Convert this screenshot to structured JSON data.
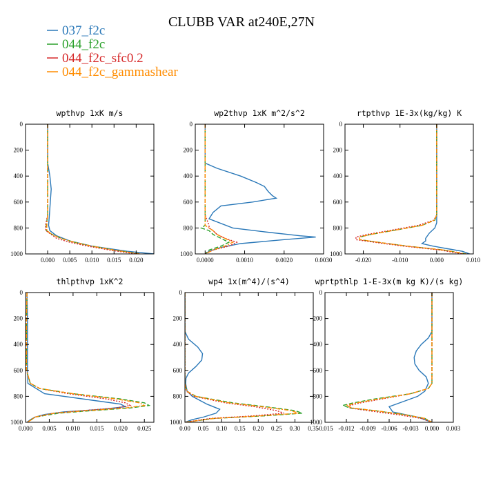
{
  "figure": {
    "title": "CLUBB VAR at240E,27N"
  },
  "legend": [
    {
      "label": "037_f2c",
      "color": "#2a78b8",
      "dash": ""
    },
    {
      "label": "044_f2c",
      "color": "#2aa02a",
      "dash": "6,3"
    },
    {
      "label": "044_f2c_sfc0.2",
      "color": "#d62728",
      "dash": "2,2"
    },
    {
      "label": "044_f2c_gammashear",
      "color": "#ff8c00",
      "dash": "6,2,2,2"
    }
  ],
  "chart_data": [
    {
      "type": "line",
      "title": "wpthvp  1xK m/s",
      "xlim": [
        -0.005,
        0.024
      ],
      "ylim": [
        1000,
        0
      ],
      "xticks": [
        0.0,
        0.005,
        0.01,
        0.015,
        0.02
      ],
      "xtick_labels": [
        "0.000",
        "0.005",
        "0.010",
        "0.015",
        "0.020"
      ],
      "yticks": [
        0,
        200,
        400,
        600,
        800,
        1000
      ],
      "ytick_labels": [
        "0",
        "200",
        "400",
        "600",
        "800",
        "1000"
      ],
      "series": [
        {
          "y": [
            0,
            100,
            200,
            300,
            400,
            500,
            600,
            700,
            780,
            820,
            860,
            900,
            940,
            980,
            1000
          ],
          "x": [
            0,
            0,
            0,
            0,
            0.0005,
            0.0008,
            0.0006,
            0.0004,
            0.0002,
            0.0005,
            0.002,
            0.005,
            0.01,
            0.018,
            0.024
          ]
        },
        {
          "y": [
            0,
            200,
            400,
            600,
            700,
            780,
            820,
            850,
            880,
            910,
            940,
            970,
            1000
          ],
          "x": [
            0,
            0,
            0,
            0,
            0,
            -0.0003,
            -0.0003,
            0.001,
            0.003,
            0.006,
            0.01,
            0.015,
            0.021
          ]
        },
        {
          "y": [
            0,
            200,
            400,
            600,
            700,
            780,
            820,
            850,
            880,
            910,
            940,
            970,
            1000
          ],
          "x": [
            0,
            0,
            0,
            0,
            0,
            -0.0005,
            -0.0004,
            0.0008,
            0.002,
            0.005,
            0.009,
            0.014,
            0.02
          ]
        },
        {
          "y": [
            0,
            200,
            400,
            600,
            700,
            780,
            820,
            850,
            880,
            910,
            940,
            970,
            1000
          ],
          "x": [
            0,
            0,
            0,
            0,
            0,
            -0.0002,
            -0.0002,
            0.001,
            0.003,
            0.006,
            0.01,
            0.015,
            0.021
          ]
        }
      ]
    },
    {
      "type": "line",
      "title": "wp2thvp  1xK m^2/s^2",
      "xlim": [
        -0.00025,
        0.003
      ],
      "ylim": [
        1000,
        0
      ],
      "xticks": [
        0.0,
        0.001,
        0.002,
        0.003
      ],
      "xtick_labels": [
        "0.0000",
        "0.0010",
        "0.0020",
        "0.0030"
      ],
      "yticks": [
        0,
        200,
        400,
        600,
        800,
        1000
      ],
      "ytick_labels": [
        "0",
        "200",
        "400",
        "600",
        "800",
        "1000"
      ],
      "series": [
        {
          "y": [
            0,
            300,
            340,
            400,
            450,
            480,
            520,
            550,
            570,
            600,
            630,
            680,
            730,
            800,
            830,
            860,
            870,
            890,
            920,
            950,
            980,
            1000
          ],
          "x": [
            0,
            0,
            0.0003,
            0.0009,
            0.0013,
            0.0015,
            0.0016,
            0.0017,
            0.0018,
            0.0012,
            0.0004,
            0.0002,
            0.0001,
            0.0007,
            0.0015,
            0.0024,
            0.0028,
            0.002,
            0.0009,
            0.0004,
            0.0001,
            0
          ]
        },
        {
          "y": [
            0,
            200,
            400,
            600,
            700,
            780,
            800,
            820,
            850,
            880,
            910,
            940,
            970,
            1000
          ],
          "x": [
            0,
            0,
            0,
            0,
            0,
            0,
            -0.0001,
            0.0001,
            0.0002,
            0.0004,
            0.0006,
            0.0004,
            0.0001,
            0
          ]
        },
        {
          "y": [
            0,
            200,
            400,
            600,
            700,
            780,
            800,
            820,
            850,
            880,
            910,
            940,
            970,
            1000
          ],
          "x": [
            0,
            0,
            0,
            0,
            0,
            0.0001,
            0.0001,
            0.0002,
            0.0003,
            0.0005,
            0.0008,
            0.0006,
            0.0002,
            0
          ]
        },
        {
          "y": [
            0,
            200,
            400,
            600,
            700,
            780,
            800,
            820,
            850,
            880,
            910,
            940,
            970,
            1000
          ],
          "x": [
            0,
            0,
            0,
            0,
            0,
            0,
            0.0001,
            0.0002,
            0.0003,
            0.0005,
            0.0007,
            0.0005,
            0.0002,
            0
          ]
        }
      ]
    },
    {
      "type": "line",
      "title": "rtpthvp  1E-3x(kg/kg) K",
      "xlim": [
        -0.025,
        0.01
      ],
      "ylim": [
        1000,
        0
      ],
      "xticks": [
        -0.02,
        -0.01,
        0.0,
        0.01
      ],
      "xtick_labels": [
        "-0.020",
        "-0.010",
        "0.000",
        "0.010"
      ],
      "yticks": [
        0,
        200,
        400,
        600,
        800,
        1000
      ],
      "ytick_labels": [
        "0",
        "200",
        "400",
        "600",
        "800",
        "1000"
      ],
      "series": [
        {
          "y": [
            0,
            200,
            400,
            600,
            700,
            760,
            800,
            840,
            880,
            900,
            920,
            940,
            960,
            980,
            1000
          ],
          "x": [
            0,
            0,
            0,
            0,
            0,
            0,
            -0.0005,
            -0.002,
            -0.003,
            -0.003,
            -0.004,
            -0.001,
            0.003,
            0.007,
            0.009
          ]
        },
        {
          "y": [
            0,
            200,
            400,
            600,
            700,
            740,
            780,
            820,
            850,
            870,
            890,
            910,
            940,
            970,
            1000
          ],
          "x": [
            0,
            0,
            0,
            0,
            0,
            -0.0005,
            -0.004,
            -0.012,
            -0.018,
            -0.021,
            -0.021,
            -0.016,
            -0.008,
            0.002,
            0.008
          ]
        },
        {
          "y": [
            0,
            200,
            400,
            600,
            700,
            740,
            780,
            820,
            850,
            870,
            890,
            910,
            940,
            970,
            1000
          ],
          "x": [
            0,
            0,
            0,
            0,
            0,
            -0.0008,
            -0.005,
            -0.013,
            -0.019,
            -0.022,
            -0.022,
            -0.017,
            -0.009,
            0.001,
            0.007
          ]
        },
        {
          "y": [
            0,
            200,
            400,
            600,
            700,
            740,
            780,
            820,
            850,
            870,
            890,
            910,
            940,
            970,
            1000
          ],
          "x": [
            0,
            0,
            0,
            0,
            0,
            -0.0006,
            -0.004,
            -0.012,
            -0.018,
            -0.021,
            -0.021,
            -0.016,
            -0.008,
            0.002,
            0.008
          ]
        }
      ]
    },
    {
      "type": "line",
      "title": "thlpthvp  1xK^2",
      "xlim": [
        0.0,
        0.027
      ],
      "ylim": [
        1000,
        0
      ],
      "xticks": [
        0.0,
        0.005,
        0.01,
        0.015,
        0.02,
        0.025
      ],
      "xtick_labels": [
        "0.000",
        "0.005",
        "0.010",
        "0.015",
        "0.020",
        "0.025"
      ],
      "yticks": [
        0,
        200,
        400,
        600,
        800,
        1000
      ],
      "ytick_labels": [
        "0",
        "200",
        "400",
        "600",
        "800",
        "1000"
      ],
      "series": [
        {
          "y": [
            0,
            200,
            400,
            600,
            700,
            780,
            830,
            860,
            880,
            900,
            920,
            940,
            960,
            980,
            1000
          ],
          "x": [
            0.0003,
            0.0004,
            0.0004,
            0.0004,
            0.0005,
            0.004,
            0.014,
            0.02,
            0.021,
            0.016,
            0.008,
            0.004,
            0.002,
            0.001,
            0.0003
          ]
        },
        {
          "y": [
            0,
            200,
            400,
            600,
            700,
            740,
            780,
            820,
            850,
            870,
            890,
            910,
            930,
            960,
            1000
          ],
          "x": [
            0.0003,
            0.0002,
            0.0002,
            0.0002,
            0.001,
            0.003,
            0.01,
            0.02,
            0.025,
            0.026,
            0.022,
            0.014,
            0.007,
            0.002,
            0.0004
          ]
        },
        {
          "y": [
            0,
            200,
            400,
            600,
            700,
            740,
            780,
            820,
            850,
            870,
            890,
            910,
            930,
            960,
            1000
          ],
          "x": [
            0.0003,
            0.0002,
            0.0002,
            0.0002,
            0.001,
            0.003,
            0.009,
            0.017,
            0.021,
            0.022,
            0.019,
            0.012,
            0.006,
            0.002,
            0.0004
          ]
        },
        {
          "y": [
            0,
            200,
            400,
            600,
            700,
            740,
            780,
            820,
            850,
            870,
            890,
            910,
            930,
            960,
            1000
          ],
          "x": [
            0.0003,
            0.0002,
            0.0002,
            0.0002,
            0.001,
            0.003,
            0.01,
            0.019,
            0.024,
            0.025,
            0.021,
            0.013,
            0.006,
            0.002,
            0.0004
          ]
        }
      ]
    },
    {
      "type": "line",
      "title": "wp4  1x(m^4)/(s^4)",
      "xlim": [
        0.0,
        0.35
      ],
      "ylim": [
        1000,
        0
      ],
      "xticks": [
        0.0,
        0.05,
        0.1,
        0.15,
        0.2,
        0.25,
        0.3,
        0.35
      ],
      "xtick_labels": [
        "0.00",
        "0.05",
        "0.10",
        "0.15",
        "0.20",
        "0.25",
        "0.30",
        "0.35"
      ],
      "yticks": [
        0,
        200,
        400,
        600,
        800,
        1000
      ],
      "ytick_labels": [
        "0",
        "200",
        "400",
        "600",
        "800",
        "1000"
      ],
      "series": [
        {
          "y": [
            0,
            300,
            360,
            420,
            470,
            520,
            570,
            620,
            660,
            700,
            760,
            800,
            860,
            900,
            930,
            960,
            980,
            1000
          ],
          "x": [
            0,
            0,
            0.01,
            0.035,
            0.048,
            0.046,
            0.03,
            0.01,
            0.003,
            0.002,
            0.006,
            0.02,
            0.06,
            0.095,
            0.085,
            0.05,
            0.02,
            0
          ]
        },
        {
          "y": [
            0,
            200,
            400,
            600,
            700,
            760,
            800,
            850,
            880,
            910,
            930,
            950,
            970,
            1000
          ],
          "x": [
            0,
            0,
            0,
            0,
            0,
            0.005,
            0.03,
            0.13,
            0.22,
            0.3,
            0.32,
            0.22,
            0.08,
            0
          ]
        },
        {
          "y": [
            0,
            200,
            400,
            600,
            700,
            760,
            800,
            850,
            880,
            910,
            930,
            950,
            970,
            1000
          ],
          "x": [
            0,
            0,
            0,
            0,
            0,
            0.004,
            0.025,
            0.11,
            0.19,
            0.25,
            0.27,
            0.19,
            0.07,
            0
          ]
        },
        {
          "y": [
            0,
            200,
            400,
            600,
            700,
            760,
            800,
            850,
            880,
            910,
            930,
            950,
            970,
            1000
          ],
          "x": [
            0,
            0,
            0,
            0,
            0,
            0.005,
            0.03,
            0.12,
            0.21,
            0.29,
            0.31,
            0.21,
            0.08,
            0
          ]
        }
      ]
    },
    {
      "type": "line",
      "title": "wprtpthlp  1-E-3x(m kg K)/(s kg)",
      "xlim": [
        -0.015,
        0.003
      ],
      "ylim": [
        1000,
        0
      ],
      "xticks": [
        -0.015,
        -0.012,
        -0.009,
        -0.006,
        -0.003,
        0.0,
        0.003
      ],
      "xtick_labels": [
        "-0.015",
        "-0.012",
        "-0.009",
        "-0.006",
        "-0.003",
        "0.000",
        "0.003"
      ],
      "yticks": [
        0,
        200,
        400,
        600,
        800,
        1000
      ],
      "ytick_labels": [
        "0",
        "200",
        "400",
        "600",
        "800",
        "1000"
      ],
      "series": [
        {
          "y": [
            0,
            300,
            350,
            400,
            450,
            500,
            550,
            600,
            650,
            700,
            760,
            800,
            840,
            880,
            920,
            960,
            1000
          ],
          "x": [
            0,
            0,
            -0.0005,
            -0.0015,
            -0.0022,
            -0.0025,
            -0.0024,
            -0.0018,
            -0.0008,
            -0.0005,
            -0.001,
            -0.002,
            -0.004,
            -0.006,
            -0.0055,
            -0.002,
            0
          ]
        },
        {
          "y": [
            0,
            200,
            400,
            600,
            700,
            740,
            780,
            820,
            850,
            870,
            890,
            910,
            940,
            970,
            1000
          ],
          "x": [
            0,
            0,
            0,
            0,
            0,
            -0.0005,
            -0.003,
            -0.008,
            -0.011,
            -0.0125,
            -0.0115,
            -0.008,
            -0.004,
            -0.001,
            0
          ]
        },
        {
          "y": [
            0,
            200,
            400,
            600,
            700,
            740,
            780,
            820,
            850,
            870,
            890,
            910,
            940,
            970,
            1000
          ],
          "x": [
            0,
            0,
            0,
            0,
            0,
            -0.0005,
            -0.003,
            -0.007,
            -0.01,
            -0.0115,
            -0.0115,
            -0.009,
            -0.005,
            -0.0015,
            0
          ]
        },
        {
          "y": [
            0,
            200,
            400,
            600,
            700,
            740,
            780,
            820,
            850,
            870,
            890,
            910,
            940,
            970,
            1000
          ],
          "x": [
            0,
            0,
            0,
            0,
            0,
            -0.0005,
            -0.003,
            -0.0075,
            -0.0105,
            -0.012,
            -0.0112,
            -0.008,
            -0.004,
            -0.001,
            0
          ]
        }
      ]
    }
  ]
}
